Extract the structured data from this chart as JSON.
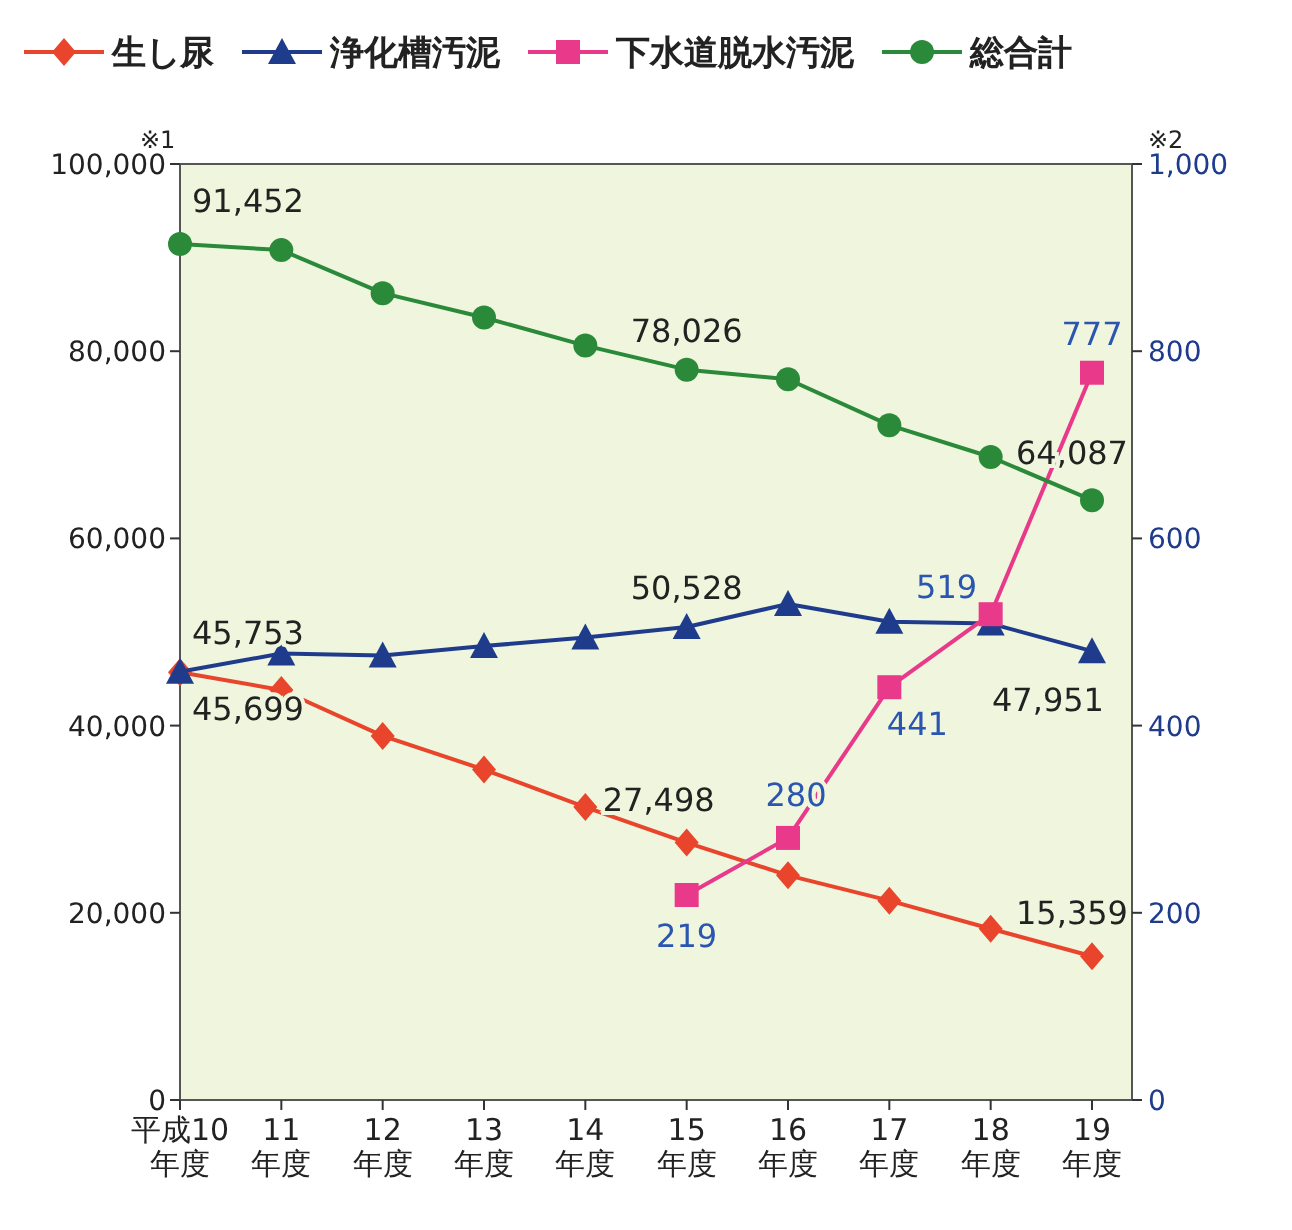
{
  "chart_data": {
    "type": "line",
    "categories": [
      "平成10年度",
      "11年度",
      "12年度",
      "13年度",
      "14年度",
      "15年度",
      "16年度",
      "17年度",
      "18年度",
      "19年度"
    ],
    "series": [
      {
        "name": "生し尿",
        "color": "#e8452c",
        "marker": "diamond",
        "values": [
          45699,
          43800,
          38900,
          35300,
          31300,
          27498,
          24000,
          21300,
          18300,
          15359
        ],
        "value_labels": [
          "45,699",
          null,
          null,
          null,
          null,
          "27,498",
          null,
          null,
          null,
          "15,359"
        ]
      },
      {
        "name": "浄化槽汚泥",
        "color": "#1f3c8c",
        "marker": "triangle",
        "values": [
          45753,
          47700,
          47500,
          48500,
          49400,
          50528,
          53000,
          51100,
          50900,
          47951
        ],
        "value_labels": [
          "45,753",
          null,
          null,
          null,
          null,
          "50,528",
          null,
          null,
          null,
          "47,951"
        ]
      },
      {
        "name": "下水道脱水汚泥",
        "color": "#e8398a",
        "marker": "square",
        "axis": "y2",
        "values": [
          null,
          null,
          null,
          null,
          null,
          219,
          280,
          441,
          519,
          777
        ],
        "value_labels": [
          null,
          null,
          null,
          null,
          null,
          "219",
          "280",
          "441",
          "519",
          "777"
        ]
      },
      {
        "name": "総合計",
        "color": "#2a8a3a",
        "marker": "circle",
        "values": [
          91452,
          90800,
          86200,
          83600,
          80600,
          78026,
          77000,
          72100,
          68700,
          64087
        ],
        "value_labels": [
          "91,452",
          null,
          null,
          null,
          null,
          "78,026",
          null,
          null,
          null,
          "64,087"
        ]
      }
    ],
    "ylim": [
      0,
      100000
    ],
    "yticks": [
      0,
      {
        "value": 20000,
        "label": "20,000"
      },
      {
        "value": 40000,
        "label": "40,000"
      },
      {
        "value": 60000,
        "label": "60,000"
      },
      {
        "value": 80000,
        "label": "80,000"
      },
      {
        "value": 100000,
        "label": "100,000"
      }
    ],
    "y2lim": [
      0,
      1000
    ],
    "y2ticks": [
      0,
      200,
      400,
      600,
      800,
      {
        "value": 1000,
        "label": "1,000"
      }
    ],
    "annotations": [
      "※1",
      "※2"
    ],
    "legend": "top",
    "grid": false
  }
}
